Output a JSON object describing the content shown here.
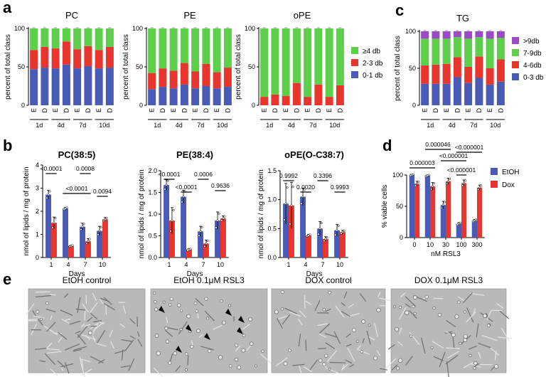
{
  "colors": {
    "blue": "#4a5bb5",
    "red": "#e8352e",
    "green": "#5ecf4a",
    "purple": "#9b4bc5",
    "err": "#000000"
  },
  "panel_letters": {
    "a": "a",
    "b": "b",
    "c": "c",
    "d": "d",
    "e": "e"
  },
  "micrograph_labels": [
    "EtOH control",
    "EtOH 0.1μM RSL3",
    "DOX control",
    "DOX 0.1μM RSL3"
  ],
  "chart_data": [
    {
      "id": "a_pc",
      "type": "bar",
      "stacked": true,
      "title": "PC",
      "ylabel": "percent of total class",
      "ylim": [
        0,
        100
      ],
      "yticks": [
        0,
        50,
        100
      ],
      "categories": [
        "E",
        "D",
        "E",
        "D",
        "E",
        "D",
        "E",
        "D"
      ],
      "groups": [
        "1d",
        "4d",
        "7d",
        "10d"
      ],
      "series": [
        {
          "name": "0-1 db",
          "color": "blue",
          "values": [
            47,
            49,
            48,
            53,
            48,
            51,
            48,
            49
          ]
        },
        {
          "name": "2-3 db",
          "color": "red",
          "values": [
            25,
            27,
            26,
            30,
            25,
            26,
            24,
            27
          ]
        },
        {
          "name": "≥4 db",
          "color": "green",
          "values": [
            28,
            24,
            26,
            17,
            27,
            23,
            28,
            24
          ]
        }
      ]
    },
    {
      "id": "a_pe",
      "type": "bar",
      "stacked": true,
      "title": "PE",
      "ylabel": "percent of total class",
      "ylim": [
        0,
        100
      ],
      "yticks": [
        0,
        50,
        100
      ],
      "categories": [
        "E",
        "D",
        "E",
        "D",
        "E",
        "D",
        "E",
        "D"
      ],
      "groups": [
        "1d",
        "4d",
        "7d",
        "10d"
      ],
      "series": [
        {
          "name": "0-1 db",
          "color": "blue",
          "values": [
            21,
            24,
            22,
            27,
            22,
            25,
            22,
            24
          ]
        },
        {
          "name": "2-3 db",
          "color": "red",
          "values": [
            21,
            24,
            23,
            28,
            22,
            29,
            21,
            25
          ]
        },
        {
          "name": "≥4 db",
          "color": "green",
          "values": [
            58,
            52,
            55,
            45,
            56,
            46,
            57,
            51
          ]
        }
      ]
    },
    {
      "id": "a_ope",
      "type": "bar",
      "stacked": true,
      "title": "oPE",
      "ylabel": "percent of total class",
      "ylim": [
        0,
        100
      ],
      "yticks": [
        0,
        50,
        100
      ],
      "categories": [
        "E",
        "D",
        "E",
        "D",
        "E",
        "D",
        "E",
        "D"
      ],
      "groups": [
        "1d",
        "4d",
        "7d",
        "10d"
      ],
      "series": [
        {
          "name": "0-1 db",
          "color": "blue",
          "values": [
            0,
            0,
            0,
            0,
            0,
            0,
            0,
            0
          ]
        },
        {
          "name": "2-3 db",
          "color": "red",
          "values": [
            11,
            14,
            12,
            29,
            11,
            27,
            11,
            26
          ]
        },
        {
          "name": "≥4 db",
          "color": "green",
          "values": [
            89,
            86,
            88,
            71,
            89,
            73,
            89,
            74
          ]
        }
      ],
      "legend": [
        "≥4 db",
        "2-3 db",
        "0-1 db"
      ],
      "legend_position": "right"
    },
    {
      "id": "c_tg",
      "type": "bar",
      "stacked": true,
      "title": "TG",
      "ylabel": "percent of total class",
      "ylim": [
        0,
        100
      ],
      "yticks": [
        0,
        50,
        100
      ],
      "categories": [
        "E",
        "D",
        "E",
        "D",
        "E",
        "D",
        "E",
        "D"
      ],
      "groups": [
        "1d",
        "4d",
        "7d",
        "10d"
      ],
      "series": [
        {
          "name": "0-3 db",
          "color": "blue",
          "values": [
            29,
            29,
            29,
            38,
            30,
            37,
            28,
            32
          ]
        },
        {
          "name": "4-6db",
          "color": "red",
          "values": [
            25,
            26,
            27,
            27,
            22,
            29,
            22,
            30
          ]
        },
        {
          "name": "7-9db",
          "color": "green",
          "values": [
            36,
            35,
            34,
            27,
            38,
            26,
            40,
            29
          ]
        },
        {
          "name": ">9db",
          "color": "purple",
          "values": [
            10,
            10,
            10,
            8,
            10,
            8,
            10,
            9
          ]
        }
      ],
      "legend": [
        ">9db",
        "7-9db",
        "4-6db",
        "0-3 db"
      ],
      "legend_position": "right"
    },
    {
      "id": "b_pc",
      "type": "bar",
      "title": "PC(38:5)",
      "xlabel": "Days",
      "ylabel": "nmol of lipids / mg of protein",
      "ylim": [
        0,
        4
      ],
      "yticks": [
        0,
        1,
        2,
        3,
        4
      ],
      "categories": [
        "1",
        "4",
        "7",
        "10"
      ],
      "series": [
        {
          "name": "EtOH",
          "color": "blue",
          "values": [
            2.72,
            2.12,
            1.33,
            1.15
          ]
        },
        {
          "name": "Dox",
          "color": "red",
          "values": [
            1.5,
            0.5,
            0.7,
            1.65
          ]
        }
      ],
      "errors": [
        [
          0.18,
          0.05,
          0.15,
          0.2
        ],
        [
          0.25,
          0.03,
          0.12,
          0.08
        ]
      ],
      "annotations": [
        "<0.0001",
        "<0.0001",
        "0.0008",
        "0.0094"
      ]
    },
    {
      "id": "b_pe",
      "type": "bar",
      "title": "PE(38:4)",
      "xlabel": "Days",
      "ylabel": "nmol of lipids / mg of protein",
      "ylim": [
        0,
        2.0
      ],
      "yticks": [
        0.0,
        0.5,
        1.0,
        1.5,
        2.0
      ],
      "categories": [
        "1",
        "4",
        "7",
        "10"
      ],
      "series": [
        {
          "name": "EtOH",
          "color": "blue",
          "values": [
            1.67,
            1.4,
            0.6,
            0.85
          ]
        },
        {
          "name": "Dox",
          "color": "red",
          "values": [
            0.85,
            0.18,
            0.32,
            0.9
          ]
        }
      ],
      "errors": [
        [
          0.12,
          0.15,
          0.12,
          0.2
        ],
        [
          0.3,
          0.02,
          0.08,
          0.06
        ]
      ],
      "annotations": [
        "<0.0001",
        "<0.0001",
        "0.0006",
        "0.9636"
      ]
    },
    {
      "id": "b_ope",
      "type": "bar",
      "title": "oPE(O-C38:7)",
      "xlabel": "Days",
      "ylabel": "nmol of lipids / mg of protein",
      "ylim": [
        0,
        1.5
      ],
      "yticks": [
        0.0,
        0.5,
        1.0,
        1.5
      ],
      "categories": [
        "1",
        "4",
        "7",
        "10"
      ],
      "series": [
        {
          "name": "EtOH",
          "color": "blue",
          "values": [
            0.93,
            1.05,
            0.5,
            0.47
          ]
        },
        {
          "name": "Dox",
          "color": "red",
          "values": [
            0.9,
            0.38,
            0.32,
            0.44
          ]
        }
      ],
      "errors": [
        [
          0.35,
          0.15,
          0.12,
          0.1
        ],
        [
          0.4,
          0.02,
          0.04,
          0.03
        ]
      ],
      "annotations": [
        "0.9992",
        "0.0020",
        "0.3396",
        "0.9993"
      ]
    },
    {
      "id": "d_via",
      "type": "bar",
      "xlabel": "nM RSL3",
      "ylabel": "% viable cells",
      "ylim": [
        0,
        100
      ],
      "yticks": [
        0,
        50,
        100
      ],
      "categories": [
        "0",
        "10",
        "30",
        "100",
        "300"
      ],
      "series": [
        {
          "name": "EtOH",
          "color": "blue",
          "values": [
            100,
            99,
            52,
            22,
            27
          ]
        },
        {
          "name": "Dox",
          "color": "red",
          "values": [
            86,
            82,
            90,
            87,
            80
          ]
        }
      ],
      "errors": [
        [
          1,
          1,
          6,
          2,
          2
        ],
        [
          4,
          6,
          5,
          5,
          4
        ]
      ],
      "annotations": [
        "0.000003",
        "0.000046",
        "<0.000001",
        "<0.000001",
        "<0.000001"
      ],
      "legend": [
        "EtOH",
        "Dox"
      ],
      "legend_position": "right"
    }
  ]
}
